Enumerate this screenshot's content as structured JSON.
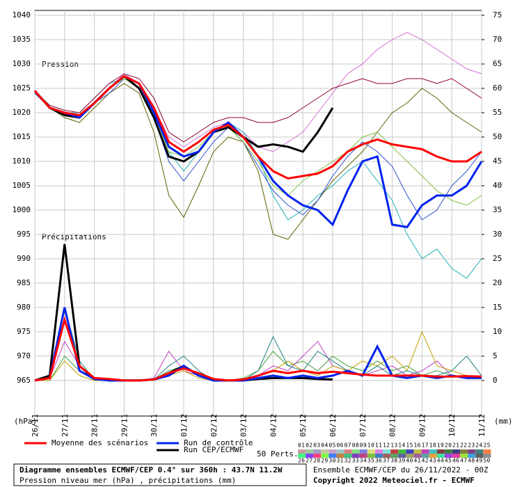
{
  "chart_data": {
    "type": "line",
    "title": "Diagramme ensembles ECMWF/CEP 0.4° sur 360h : 43.7N 11.2W",
    "subtitle": "Pression niveau mer (hPa) , précipitations (mm)",
    "run_info": "Ensemble ECMWF/CEP du 26/11/2022 - 00Z",
    "copyright": "Copyright 2022 Meteociel.fr - ECMWF",
    "ylabel": "(hPa)",
    "y2label": "(mm)",
    "annotations": [
      "Pression",
      "Précipitations"
    ],
    "members_label": "50 Perts.",
    "members": [
      {
        "name": "01",
        "color": "#c8a0a0"
      },
      {
        "name": "02",
        "color": "#a0c8a0"
      },
      {
        "name": "03",
        "color": "#a0a0c8"
      },
      {
        "name": "04",
        "color": "#c8c8a0"
      },
      {
        "name": "05",
        "color": "#c8a0c8"
      },
      {
        "name": "06",
        "color": "#a0c8c8"
      },
      {
        "name": "07",
        "color": "#e08080"
      },
      {
        "name": "08",
        "color": "#80e080"
      },
      {
        "name": "09",
        "color": "#8080e0"
      },
      {
        "name": "10",
        "color": "#e0e080"
      },
      {
        "name": "11",
        "color": "#e080e0"
      },
      {
        "name": "12",
        "color": "#80e0e0"
      },
      {
        "name": "13",
        "color": "#c04040"
      },
      {
        "name": "14",
        "color": "#40c040"
      },
      {
        "name": "15",
        "color": "#4040c0"
      },
      {
        "name": "16",
        "color": "#c0c040"
      },
      {
        "name": "17",
        "color": "#c040c0"
      },
      {
        "name": "18",
        "color": "#40c0c0"
      },
      {
        "name": "19",
        "color": "#804040"
      },
      {
        "name": "20",
        "color": "#408040"
      },
      {
        "name": "21",
        "color": "#404080"
      },
      {
        "name": "22",
        "color": "#808040"
      },
      {
        "name": "23",
        "color": "#804080"
      },
      {
        "name": "24",
        "color": "#408080"
      },
      {
        "name": "25",
        "color": "#ff8040"
      },
      {
        "name": "26",
        "color": "#40ff80"
      },
      {
        "name": "27",
        "color": "#8040ff"
      },
      {
        "name": "28",
        "color": "#ff4080"
      },
      {
        "name": "29",
        "color": "#80ff40"
      },
      {
        "name": "30",
        "color": "#4080ff"
      },
      {
        "name": "31",
        "color": "#c08040"
      },
      {
        "name": "32",
        "color": "#40c080"
      },
      {
        "name": "33",
        "color": "#8040c0"
      },
      {
        "name": "34",
        "color": "#c04080"
      },
      {
        "name": "35",
        "color": "#80c040"
      },
      {
        "name": "36",
        "color": "#4080c0"
      },
      {
        "name": "37",
        "color": "#a06060"
      },
      {
        "name": "38",
        "color": "#60a060"
      },
      {
        "name": "39",
        "color": "#6060a0"
      },
      {
        "name": "40",
        "color": "#a0a060"
      },
      {
        "name": "41",
        "color": "#a060a0"
      },
      {
        "name": "42",
        "color": "#60a0a0"
      },
      {
        "name": "43",
        "color": "#e0a040"
      },
      {
        "name": "44",
        "color": "#40e0a0"
      },
      {
        "name": "45",
        "color": "#a040e0"
      },
      {
        "name": "46",
        "color": "#e040a0"
      },
      {
        "name": "47",
        "color": "#a0e040"
      },
      {
        "name": "48",
        "color": "#40a0e0"
      },
      {
        "name": "49",
        "color": "#606060"
      },
      {
        "name": "50",
        "color": "#909090"
      }
    ],
    "x": [
      0,
      12,
      24,
      36,
      48,
      60,
      72,
      84,
      96,
      108,
      120,
      132,
      144,
      156,
      168,
      180,
      192,
      204,
      216,
      228,
      240,
      252,
      264,
      276,
      288,
      300,
      312,
      324,
      336,
      348,
      360
    ],
    "xlim": [
      0,
      360
    ],
    "xticks": [
      {
        "value": 0,
        "label": "26/11"
      },
      {
        "value": 24,
        "label": "27/11"
      },
      {
        "value": 48,
        "label": "28/11"
      },
      {
        "value": 72,
        "label": "29/11"
      },
      {
        "value": 96,
        "label": "30/11"
      },
      {
        "value": 120,
        "label": "01/12"
      },
      {
        "value": 144,
        "label": "02/12"
      },
      {
        "value": 168,
        "label": "03/12"
      },
      {
        "value": 192,
        "label": "04/12"
      },
      {
        "value": 216,
        "label": "05/12"
      },
      {
        "value": 240,
        "label": "06/12"
      },
      {
        "value": 264,
        "label": "07/12"
      },
      {
        "value": 288,
        "label": "08/12"
      },
      {
        "value": 312,
        "label": "09/12"
      },
      {
        "value": 336,
        "label": "10/12"
      },
      {
        "value": 360,
        "label": "11/12"
      }
    ],
    "ylim": [
      957.7,
      1041
    ],
    "yticks": [
      965,
      970,
      975,
      980,
      985,
      990,
      995,
      1000,
      1005,
      1010,
      1015,
      1020,
      1025,
      1030,
      1035,
      1040
    ],
    "y2lim": [
      -7.3,
      76
    ],
    "y2ticks": [
      0,
      5,
      10,
      15,
      20,
      25,
      30,
      35,
      40,
      45,
      50,
      55,
      60,
      65,
      70,
      75
    ],
    "grid": true,
    "series": [
      {
        "color": "#d070d0",
        "values": [
          1024,
          1021,
          1020,
          1019,
          1022,
          1025,
          1028,
          1026,
          1021,
          1015,
          1013,
          1015,
          1017,
          1018,
          1016,
          1013,
          1012,
          1014,
          1016,
          1020,
          1024,
          1028,
          1030,
          1033,
          1035,
          1036.5,
          1035,
          1033,
          1031,
          1029,
          1028
        ]
      },
      {
        "color": "#20b0b0",
        "values": [
          1024.5,
          1021,
          1020,
          1020,
          1023,
          1026,
          1027,
          1025,
          1020,
          1012,
          1008,
          1012,
          1016,
          1018,
          1016,
          1011,
          1003,
          998,
          1000,
          1003,
          1005,
          1008,
          1010,
          1006,
          1002,
          995,
          990,
          992,
          988,
          986,
          990
        ]
      },
      {
        "color": "#606000",
        "values": [
          1024,
          1021,
          1019,
          1018,
          1021,
          1024,
          1026,
          1024,
          1016,
          1003,
          998.5,
          1005,
          1012,
          1015,
          1014,
          1008,
          995,
          994,
          998,
          1002,
          1006,
          1009,
          1012,
          1016,
          1020,
          1022,
          1025,
          1023,
          1020,
          1018,
          1016
        ]
      },
      {
        "color": "#900030",
        "values": [
          1024.5,
          1021.5,
          1020.5,
          1020,
          1023,
          1026,
          1028,
          1027,
          1023,
          1016,
          1014,
          1016,
          1018,
          1019,
          1019,
          1018,
          1018,
          1019,
          1021,
          1023,
          1025,
          1026,
          1027,
          1026,
          1026,
          1027,
          1027,
          1026,
          1027,
          1025,
          1023
        ]
      },
      {
        "color": "#3050d0",
        "values": [
          1024,
          1021,
          1020,
          1019,
          1022,
          1024,
          1027,
          1025,
          1019,
          1010,
          1006,
          1010,
          1014,
          1017,
          1014,
          1009,
          1004,
          1001,
          999,
          1002,
          1007,
          1011,
          1014,
          1012,
          1009,
          1003,
          998,
          1000,
          1005,
          1008,
          1012
        ]
      },
      {
        "color": "#80c040",
        "values": [
          1024.5,
          1021,
          1020,
          1019.5,
          1022,
          1025,
          1027,
          1025,
          1020,
          1012,
          1011,
          1013,
          1016,
          1017,
          1014,
          1010,
          1005,
          1003,
          1006,
          1008,
          1010,
          1012,
          1015,
          1016,
          1013,
          1010,
          1007,
          1004,
          1002,
          1001,
          1003
        ]
      },
      {
        "color": "#40a040",
        "axis": "y2",
        "values": [
          0,
          0,
          5,
          2,
          0.5,
          0,
          0,
          0,
          0.2,
          2,
          3,
          1,
          0,
          0,
          0.5,
          2,
          6,
          3,
          4,
          2,
          5,
          3,
          2,
          4,
          2,
          3,
          1,
          2,
          1,
          0.5,
          1
        ]
      },
      {
        "color": "#c040c0",
        "axis": "y2",
        "values": [
          0,
          0.5,
          8,
          3,
          0.2,
          0,
          0,
          0,
          0.5,
          6,
          2,
          1,
          0,
          0,
          0,
          1,
          3,
          2,
          5,
          8,
          3,
          2,
          1,
          2,
          3,
          1,
          2,
          4,
          1,
          1,
          0.5
        ]
      },
      {
        "color": "#c0a000",
        "axis": "y2",
        "values": [
          0,
          0,
          4,
          1,
          0,
          0,
          0,
          0,
          0,
          1,
          2,
          0.5,
          0,
          0,
          0.2,
          1,
          2,
          4,
          2,
          1,
          3,
          2,
          4,
          3,
          5,
          2,
          10,
          3,
          2,
          1,
          0.5
        ]
      },
      {
        "color": "#208080",
        "axis": "y2",
        "values": [
          0,
          0.5,
          15,
          4,
          0.2,
          0,
          0,
          0,
          0.2,
          3,
          5,
          2,
          0,
          0,
          0,
          2,
          9,
          3,
          2,
          6,
          4,
          2,
          1,
          3,
          1,
          2,
          1,
          1,
          2,
          5,
          1
        ]
      },
      {
        "name": "Run CEP/ECMWF",
        "color": "#000000",
        "values": [
          1024.5,
          1021,
          1019.5,
          1019,
          1022,
          1025,
          1027.5,
          1025,
          1019,
          1011,
          1010,
          1012,
          1016,
          1017,
          1015,
          1013,
          1013.5,
          1013,
          1012,
          1016,
          1021,
          null,
          null,
          null,
          null,
          null,
          null,
          null,
          null,
          null,
          null
        ]
      },
      {
        "color": "#000000",
        "axis": "y2",
        "values": [
          0,
          1,
          28,
          3,
          0.3,
          0,
          0,
          0,
          0.2,
          1.5,
          3,
          1,
          0,
          0,
          0,
          0.3,
          0.5,
          0.5,
          0.5,
          0.3,
          0.2,
          null,
          null,
          null,
          null,
          null,
          null,
          null,
          null,
          null,
          null
        ]
      },
      {
        "name": "Run de contrôle",
        "color": "#0022ee",
        "values": [
          1024.5,
          1021,
          1020,
          1019,
          1022,
          1025,
          1027.5,
          1026,
          1020,
          1013,
          1011,
          1012,
          1016,
          1018,
          1015,
          1011,
          1006,
          1003,
          1001,
          1000,
          997,
          1004,
          1010,
          1011,
          997,
          996.5,
          1001,
          1003,
          1003,
          1005,
          1010
        ]
      },
      {
        "color": "#0022ee",
        "axis": "y2",
        "values": [
          0,
          0.5,
          15,
          2,
          0.3,
          0,
          0,
          0,
          0.2,
          1,
          3,
          1,
          0,
          0,
          0,
          0.5,
          1,
          0.5,
          1,
          0.5,
          1,
          2,
          1,
          7,
          1,
          0.5,
          1,
          0.5,
          1,
          0.5,
          0.5
        ]
      },
      {
        "name": "Moyenne des scénarios",
        "color": "#ff0000",
        "values": [
          1024.5,
          1021,
          1020,
          1019.5,
          1022,
          1025,
          1027.5,
          1026,
          1021,
          1014,
          1012,
          1014,
          1016.5,
          1017.5,
          1015,
          1011,
          1008,
          1006.5,
          1007,
          1007.5,
          1009,
          1012,
          1013.5,
          1014.5,
          1013.5,
          1013,
          1012.5,
          1011,
          1010,
          1010,
          1012
        ]
      },
      {
        "color": "#ff0000",
        "axis": "y2",
        "values": [
          0,
          0.5,
          12.5,
          3,
          0.5,
          0.3,
          0,
          0,
          0.2,
          1.5,
          2.5,
          1.5,
          0.3,
          0,
          0.2,
          1,
          2,
          1.5,
          2,
          1.5,
          1.8,
          1.5,
          1.2,
          1,
          1,
          1,
          1,
          0.8,
          0.8,
          0.9,
          0.8
        ]
      }
    ]
  }
}
